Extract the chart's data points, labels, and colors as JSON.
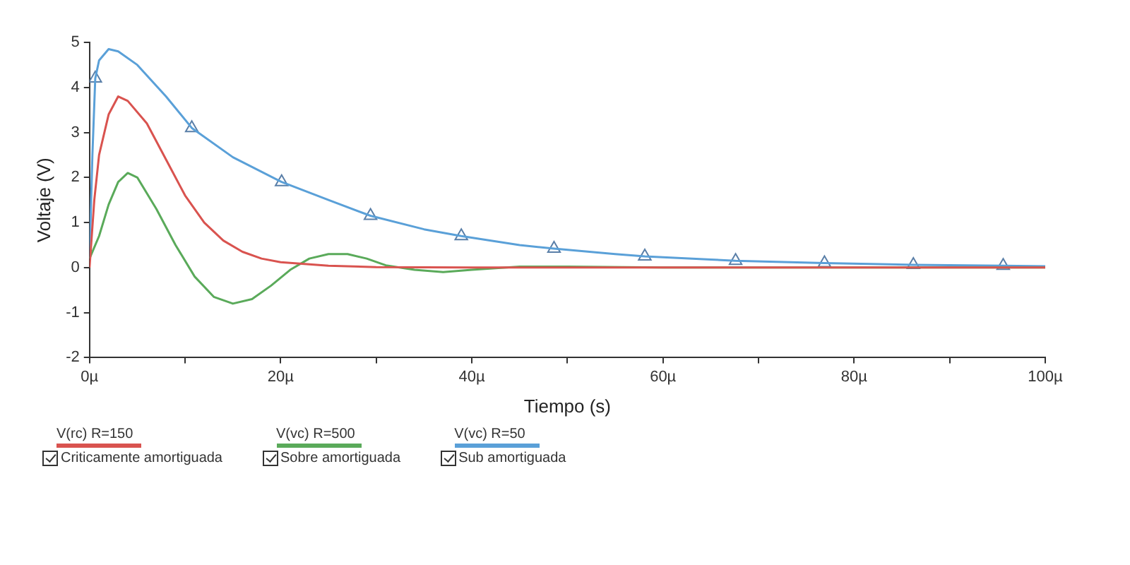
{
  "chart_data": {
    "type": "line",
    "xlabel": "Tiempo (s)",
    "ylabel": "Voltaje (V)",
    "xlim": [
      0,
      100
    ],
    "xticks": [
      {
        "value": 0,
        "label": "0µ"
      },
      {
        "value": 10,
        "label": null
      },
      {
        "value": 20,
        "label": "20µ"
      },
      {
        "value": 30,
        "label": null
      },
      {
        "value": 40,
        "label": "40µ"
      },
      {
        "value": 50,
        "label": null
      },
      {
        "value": 60,
        "label": "60µ"
      },
      {
        "value": 70,
        "label": null
      },
      {
        "value": 80,
        "label": "80µ"
      },
      {
        "value": 90,
        "label": null
      },
      {
        "value": 100,
        "label": "100µ"
      }
    ],
    "ylim": [
      -2,
      5
    ],
    "yticks": [
      -2,
      -1,
      0,
      1,
      2,
      3,
      4,
      5
    ],
    "grid": false,
    "legend": "bottom",
    "marker": "none",
    "line_style": "solid",
    "series": [
      {
        "name": "V(rc) R=150\nCriticamente amortiguada",
        "color": "#d9534f",
        "x": [
          0,
          0.5,
          1,
          2,
          3,
          4,
          6,
          8,
          10,
          12,
          14,
          16,
          18,
          20,
          25,
          30,
          40,
          100
        ],
        "values": [
          0,
          1.5,
          2.5,
          3.4,
          3.8,
          3.7,
          3.2,
          2.4,
          1.6,
          1.0,
          0.6,
          0.35,
          0.2,
          0.12,
          0.04,
          0.01,
          0,
          0
        ]
      },
      {
        "name": "V(vc) R=500\nSobre amortiguada",
        "color": "#5aaa5a",
        "x": [
          0,
          1,
          2,
          3,
          4,
          5,
          7,
          9,
          11,
          13,
          15,
          17,
          19,
          21,
          23,
          25,
          27,
          29,
          31,
          34,
          37,
          40,
          45,
          50,
          60,
          100
        ],
        "values": [
          0.2,
          0.7,
          1.4,
          1.9,
          2.1,
          2.0,
          1.3,
          0.5,
          -0.2,
          -0.65,
          -0.8,
          -0.7,
          -0.4,
          -0.05,
          0.2,
          0.3,
          0.3,
          0.2,
          0.05,
          -0.05,
          -0.1,
          -0.05,
          0.02,
          0.02,
          0,
          0
        ]
      },
      {
        "name": "V(vc) R=50\nSub amortiguada",
        "color": "#5aa0d8",
        "x": [
          0,
          0.3,
          0.6,
          1,
          2,
          3,
          5,
          8,
          10.7,
          15,
          20.1,
          25,
          29.4,
          35,
          38.9,
          45,
          48.6,
          55,
          58.1,
          65,
          67.6,
          76.9,
          86.2,
          95.6,
          100
        ],
        "values": [
          0.2,
          2.5,
          4.2,
          4.6,
          4.85,
          4.8,
          4.5,
          3.8,
          3.1,
          2.45,
          1.9,
          1.5,
          1.15,
          0.85,
          0.7,
          0.5,
          0.42,
          0.3,
          0.25,
          0.18,
          0.15,
          0.1,
          0.06,
          0.04,
          0.03
        ]
      },
      {
        "type": "scatter",
        "color": "#5a7fa8",
        "marker": "triangle",
        "x": [
          0.6,
          10.7,
          20.1,
          29.4,
          38.9,
          48.6,
          58.1,
          67.6,
          76.9,
          86.2,
          95.6
        ],
        "values": [
          4.2,
          3.1,
          1.9,
          1.15,
          0.7,
          0.42,
          0.25,
          0.15,
          0.1,
          0.06,
          0.04
        ]
      }
    ]
  }
}
